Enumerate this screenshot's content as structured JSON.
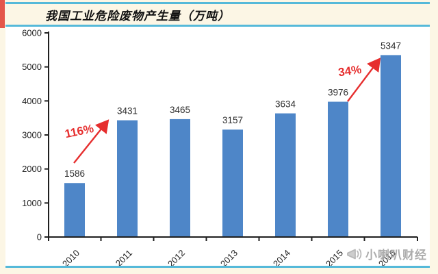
{
  "page": {
    "background_color": "#fcf6e5"
  },
  "header": {
    "title": "我国工业危险废物产生量（万吨）",
    "accent_color": "#e4564a",
    "line_color": "#55b9d9"
  },
  "chart_data": {
    "type": "bar",
    "title": "我国工业危险废物产生量（万吨）",
    "categories": [
      "2010",
      "2011",
      "2012",
      "2013",
      "2014",
      "2015",
      "2016"
    ],
    "values": [
      1586,
      3431,
      3465,
      3157,
      3634,
      3976,
      5347
    ],
    "xlabel": "",
    "ylabel": "",
    "ylim": [
      0,
      6000
    ],
    "yticks": [
      0,
      1000,
      2000,
      3000,
      4000,
      5000,
      6000
    ],
    "grid": false,
    "legend_position": "none",
    "bar_color": "#4e86c8",
    "axis_color": "#1f1f1f",
    "value_label_color": "#2d2d2d",
    "tick_label_color": "#222222",
    "annotations": [
      {
        "text": "116%",
        "from_category": "2010",
        "to_category": "2011",
        "color": "#e62e2e"
      },
      {
        "text": "34%",
        "from_category": "2015",
        "to_category": "2016",
        "color": "#e62e2e"
      }
    ]
  },
  "watermark": {
    "icon": "megaphone-icon",
    "text": "小喇叭财经",
    "color": "#a5a5a5"
  }
}
